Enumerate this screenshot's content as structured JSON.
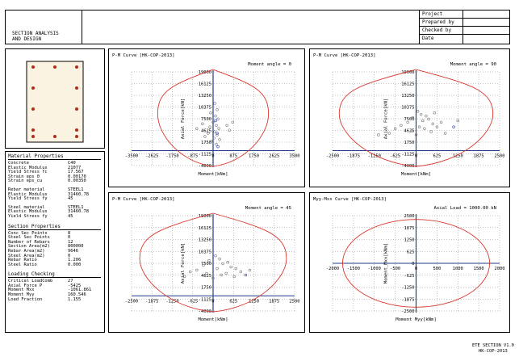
{
  "header": {
    "title_lines": [
      "SECTION ANALYSIS",
      "AND DESIGN"
    ],
    "info_labels": [
      "Project",
      "Prepared by",
      "Checked by",
      "Date"
    ]
  },
  "section_sketch": {
    "bar_color": "#b52b16",
    "fill_color": "#fbf3e2"
  },
  "properties": {
    "material_title": "Material Properties",
    "concrete": [
      {
        "k": "Concrete",
        "v": "C40"
      },
      {
        "k": "Elastic Modulus",
        "v": "21077"
      },
      {
        "k": "Yield Stress fc",
        "v": "17.567"
      },
      {
        "k": "Strain eps 0",
        "v": "0.00170"
      },
      {
        "k": "Strain eps_cu",
        "v": "0.00350"
      }
    ],
    "rebar": [
      {
        "k": "Rebar material",
        "v": "STEEL1"
      },
      {
        "k": "Elastic Modulus",
        "v": "31460.78"
      },
      {
        "k": "Yield Stress fy",
        "v": "45"
      }
    ],
    "steel": [
      {
        "k": "Steel material",
        "v": "STEEL1"
      },
      {
        "k": "Elastic Modulus",
        "v": "31460.78"
      },
      {
        "k": "Yield Stress fy",
        "v": "45"
      }
    ],
    "section_title": "Section Properties",
    "section": [
      {
        "k": "Conc Sec Points",
        "v": "8"
      },
      {
        "k": "Steel Sec Points",
        "v": "0"
      },
      {
        "k": "Number of Rebars",
        "v": "12"
      },
      {
        "k": "Section Area(m2)",
        "v": "800000"
      },
      {
        "k": "Rebar Area(m2)",
        "v": "9646"
      },
      {
        "k": "Steel Area(m2)",
        "v": "0"
      },
      {
        "k": "Rebar Ratio",
        "v": "1.206"
      },
      {
        "k": "Steel Ratio",
        "v": "0.000"
      }
    ],
    "loading_title": "Loading Checking",
    "loading": [
      {
        "k": "Critical LoadComb",
        "v": "27"
      },
      {
        "k": "Axial Force P",
        "v": "-5425"
      },
      {
        "k": "Moment Mxx",
        "v": "-1061.861"
      },
      {
        "k": "Moment Myy",
        "v": "160.546"
      },
      {
        "k": "Load Fraction",
        "v": "1.155"
      }
    ]
  },
  "charts": [
    {
      "title": "P-M Curve [HK-COP-2013]",
      "annotation": "Moment angle = 0",
      "ylabel": "Axial Force[kN]",
      "xlabel": "Moment[kNm]",
      "x_ticks": [
        "-3500",
        "-2625",
        "-1750",
        "-875",
        "0",
        "875",
        "1750",
        "2625",
        "3500"
      ],
      "x_tick_labels": [
        "-3500",
        "-2625",
        "-1750",
        "-875",
        "0",
        "875",
        "1750",
        "2625",
        "3500"
      ],
      "y_ticks": [
        "19000",
        "16125",
        "13250",
        "10375",
        "7500",
        "4625",
        "1750",
        "-1125",
        "-4000"
      ]
    },
    {
      "title": "P-M Curve [HK-COP-2013]",
      "annotation": "Moment angle = 90",
      "ylabel": "Axial Force[kN]",
      "xlabel": "Moment[kNm]",
      "x_tick_labels": [
        "-2500",
        "-1875",
        "-1250",
        "-625",
        "0",
        "625",
        "1250",
        "1875",
        "2500"
      ],
      "y_ticks": [
        "19000",
        "16125",
        "13250",
        "10375",
        "7500",
        "4625",
        "1750",
        "-1125",
        "-4000"
      ]
    },
    {
      "title": "P-M Curve [HK-COP-2013]",
      "annotation": "Moment angle = 45",
      "ylabel": "Axial Force[kN]",
      "xlabel": "Moment[kNm]",
      "x_tick_labels": [
        "-2500",
        "-1875",
        "-1250",
        "-625",
        "0",
        "625",
        "1250",
        "1875",
        "2500"
      ],
      "y_ticks": [
        "19000",
        "16125",
        "13250",
        "10375",
        "7500",
        "4625",
        "1750",
        "-1125",
        "-4000"
      ]
    },
    {
      "title": "Myy-Mxx Curve [HK-COP-2013]",
      "annotation": "Axial Load = 1000.00 kN",
      "ylabel": "Moment_Mxx[kNm]",
      "xlabel": "Moment Myy[kNm]",
      "x_tick_labels": [
        "-2000",
        "-1500",
        "-1000",
        "-500",
        "0",
        "500",
        "1000",
        "1500",
        "2000"
      ],
      "y_ticks": [
        "2500",
        "1875",
        "1250",
        "625",
        "0",
        "-625",
        "-1250",
        "-1875",
        "-2500"
      ]
    }
  ],
  "footer": {
    "line1": "ETE SECTION V1.0",
    "line2": "HK-COP-2013"
  }
}
